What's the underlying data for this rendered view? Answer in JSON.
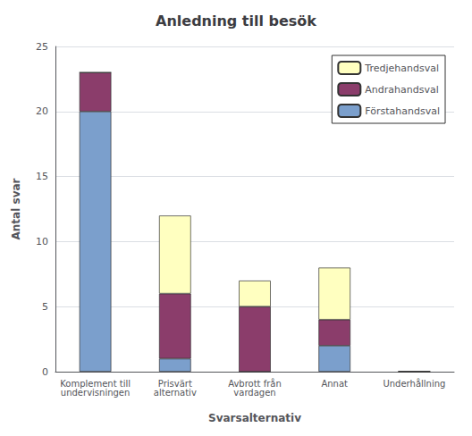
{
  "chart_data": {
    "type": "bar",
    "stacked": true,
    "title": "Anledning till besök",
    "xlabel": "Svarsalternativ",
    "ylabel": "Antal svar",
    "categories": [
      "Komplement till\nundervisningen",
      "Prisvärt\nalternativ",
      "Avbrott från\nvardagen",
      "Annat",
      "Underhållning"
    ],
    "series": [
      {
        "name": "Förstahandsval",
        "color": "#7B9FCC",
        "values": [
          20,
          1,
          0,
          2,
          0
        ]
      },
      {
        "name": "Andrahandsval",
        "color": "#8B3D6B",
        "values": [
          3,
          5,
          5,
          2,
          0
        ]
      },
      {
        "name": "Tredjehandsval",
        "color": "#FFFFC0",
        "values": [
          0,
          6,
          2,
          4,
          0
        ]
      }
    ],
    "ylim": [
      0,
      25
    ],
    "yticks": [
      0,
      5,
      10,
      15,
      20,
      25
    ],
    "grid": true,
    "legend": "upper right"
  }
}
